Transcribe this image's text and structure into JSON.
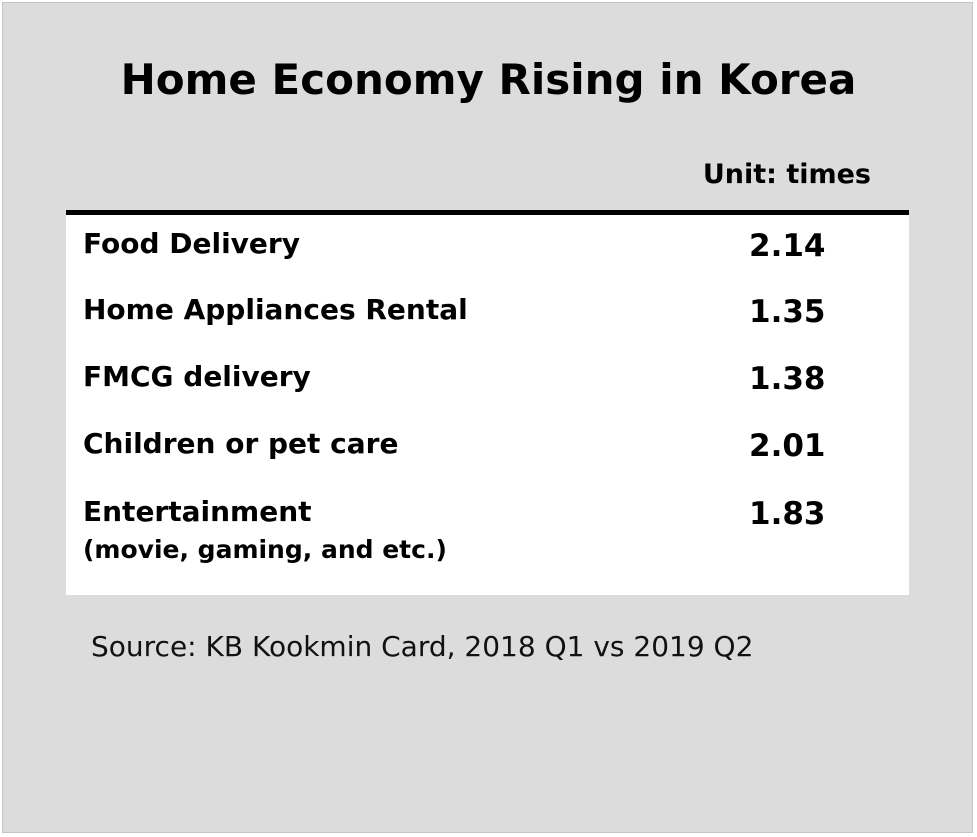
{
  "chart_data": {
    "type": "table",
    "title": "Home Economy Rising in Korea",
    "unit_label": "Unit: times",
    "rows": [
      {
        "label": "Food Delivery",
        "sublabel": "",
        "value": "2.14"
      },
      {
        "label": "Home Appliances Rental",
        "sublabel": "",
        "value": "1.35"
      },
      {
        "label": "FMCG delivery",
        "sublabel": "",
        "value": "1.38"
      },
      {
        "label": "Children or pet care",
        "sublabel": "",
        "value": "2.01"
      },
      {
        "label": "Entertainment",
        "sublabel": "(movie, gaming, and etc.)",
        "value": "1.83"
      }
    ],
    "source": "Source: KB Kookmin Card, 2018 Q1 vs 2019 Q2"
  },
  "colors": {
    "panel_background": "#dcdcdc",
    "table_background": "#ffffff",
    "rule": "#000000",
    "text": "#000000"
  }
}
